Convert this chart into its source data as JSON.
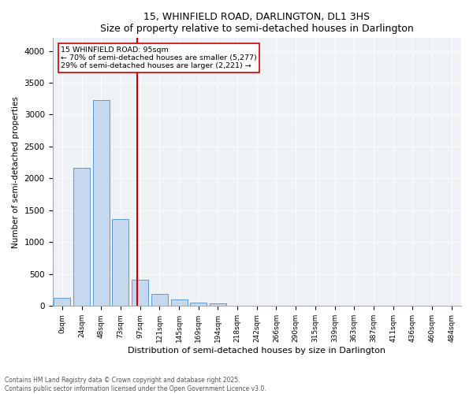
{
  "title1": "15, WHINFIELD ROAD, DARLINGTON, DL1 3HS",
  "title2": "Size of property relative to semi-detached houses in Darlington",
  "xlabel": "Distribution of semi-detached houses by size in Darlington",
  "ylabel": "Number of semi-detached properties",
  "bar_labels": [
    "0sqm",
    "24sqm",
    "48sqm",
    "73sqm",
    "97sqm",
    "121sqm",
    "145sqm",
    "169sqm",
    "194sqm",
    "218sqm",
    "242sqm",
    "266sqm",
    "290sqm",
    "315sqm",
    "339sqm",
    "363sqm",
    "387sqm",
    "411sqm",
    "436sqm",
    "460sqm",
    "484sqm"
  ],
  "bar_values": [
    130,
    2170,
    3230,
    1360,
    415,
    195,
    100,
    50,
    45,
    0,
    0,
    0,
    0,
    0,
    0,
    0,
    0,
    0,
    0,
    0,
    0
  ],
  "bar_color": "#c5d8ed",
  "bar_edge_color": "#5b9bd5",
  "vline_color": "#cc0000",
  "annotation_text1": "15 WHINFIELD ROAD: 95sqm",
  "annotation_text2": "← 70% of semi-detached houses are smaller (5,277)",
  "annotation_text3": "29% of semi-detached houses are larger (2,221) →",
  "ylim": [
    0,
    4200
  ],
  "yticks": [
    0,
    500,
    1000,
    1500,
    2000,
    2500,
    3000,
    3500,
    4000
  ],
  "footer1": "Contains HM Land Registry data © Crown copyright and database right 2025.",
  "footer2": "Contains public sector information licensed under the Open Government Licence v3.0.",
  "bg_color": "#eef2f7"
}
